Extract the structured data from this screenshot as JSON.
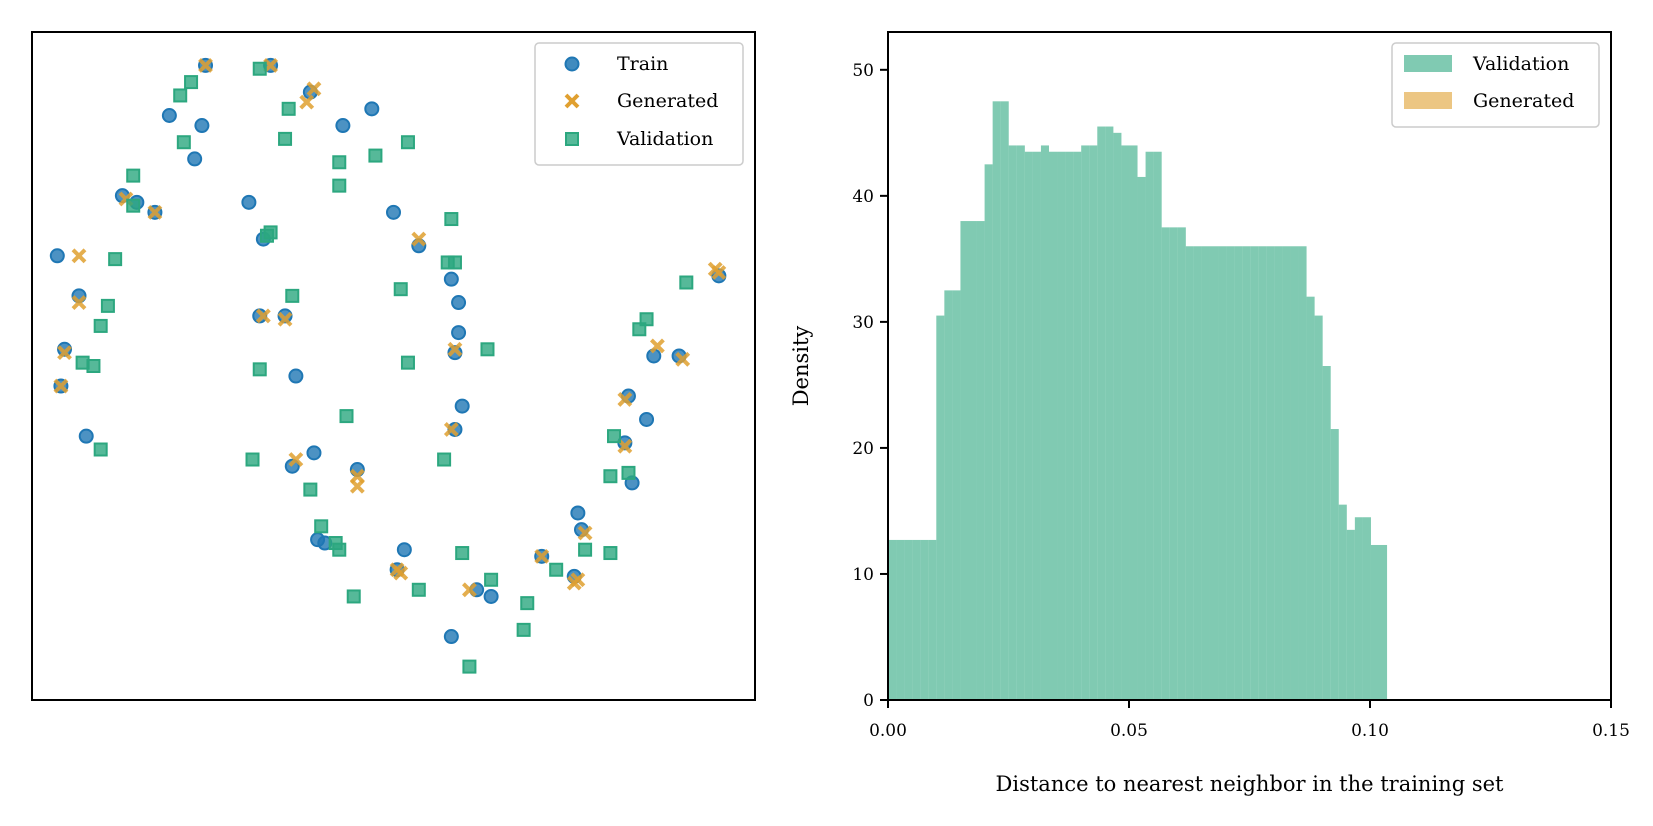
{
  "chart_data": [
    {
      "type": "scatter",
      "title": "",
      "xlabel": "",
      "ylabel": "",
      "xticks": false,
      "yticks": false,
      "xlim": [
        0,
        100
      ],
      "ylim": [
        0,
        100
      ],
      "legend": {
        "position": "top-right",
        "entries": [
          "Train",
          "Generated",
          "Validation"
        ]
      },
      "colors": {
        "Train": "#1f77b4",
        "Generated": "#e0a030",
        "Validation": "#2ca77f"
      },
      "series": [
        {
          "name": "Train",
          "marker": "circle",
          "points": [
            [
              24,
              95
            ],
            [
              33,
              95
            ],
            [
              38.5,
              91
            ],
            [
              43,
              86
            ],
            [
              47,
              88.5
            ],
            [
              23.5,
              86
            ],
            [
              19,
              87.5
            ],
            [
              22.5,
              81
            ],
            [
              14.5,
              74.5
            ],
            [
              12.5,
              75.5
            ],
            [
              17,
              73
            ],
            [
              30,
              74.5
            ],
            [
              32,
              69
            ],
            [
              50,
              73
            ],
            [
              53.5,
              68
            ],
            [
              3.5,
              66.5
            ],
            [
              6.5,
              60.5
            ],
            [
              31.5,
              57.5
            ],
            [
              35,
              57.5
            ],
            [
              58,
              63
            ],
            [
              59,
              59.5
            ],
            [
              4.5,
              52.5
            ],
            [
              59,
              55
            ],
            [
              58.5,
              52
            ],
            [
              36.5,
              48.5
            ],
            [
              4,
              47
            ],
            [
              59.5,
              44
            ],
            [
              58.5,
              40.5
            ],
            [
              7.5,
              39.5
            ],
            [
              82.5,
              45.5
            ],
            [
              85,
              42
            ],
            [
              82,
              38.5
            ],
            [
              39,
              37
            ],
            [
              36,
              35
            ],
            [
              45,
              34.5
            ],
            [
              83,
              32.5
            ],
            [
              75.5,
              28
            ],
            [
              76,
              25.5
            ],
            [
              39.5,
              24
            ],
            [
              40.5,
              23.5
            ],
            [
              70.5,
              21.5
            ],
            [
              51.5,
              22.5
            ],
            [
              50.5,
              19.5
            ],
            [
              61.5,
              16.5
            ],
            [
              63.5,
              15.5
            ],
            [
              75,
              18.5
            ],
            [
              58,
              9.5
            ],
            [
              86,
              51.5
            ],
            [
              89.5,
              51.5
            ],
            [
              95,
              63.5
            ]
          ]
        },
        {
          "name": "Generated",
          "marker": "x",
          "points": [
            [
              24,
              95
            ],
            [
              33,
              95
            ],
            [
              39,
              91.5
            ],
            [
              38,
              89.5
            ],
            [
              13,
              75
            ],
            [
              17,
              73
            ],
            [
              53.5,
              69
            ],
            [
              6.5,
              66.5
            ],
            [
              6.5,
              59.5
            ],
            [
              32,
              57.5
            ],
            [
              35,
              57
            ],
            [
              58.5,
              52.5
            ],
            [
              4.5,
              52
            ],
            [
              4,
              47
            ],
            [
              82,
              45
            ],
            [
              58,
              40.5
            ],
            [
              82,
              38
            ],
            [
              36.5,
              36
            ],
            [
              45,
              33.5
            ],
            [
              45,
              32
            ],
            [
              76.5,
              25
            ],
            [
              70.5,
              21.5
            ],
            [
              50.5,
              19.5
            ],
            [
              51,
              19
            ],
            [
              60.5,
              16.5
            ],
            [
              75.5,
              18
            ],
            [
              75,
              17.5
            ],
            [
              86.5,
              53
            ],
            [
              90,
              51
            ],
            [
              95,
              64
            ],
            [
              94.5,
              64.5
            ]
          ]
        },
        {
          "name": "Validation",
          "marker": "square",
          "points": [
            [
              31.5,
              94.5
            ],
            [
              22,
              92.5
            ],
            [
              20.5,
              90.5
            ],
            [
              35.5,
              88.5
            ],
            [
              21,
              83.5
            ],
            [
              35,
              84
            ],
            [
              42.5,
              80.5
            ],
            [
              47.5,
              81.5
            ],
            [
              52,
              83.5
            ],
            [
              42.5,
              77
            ],
            [
              14,
              78.5
            ],
            [
              14,
              74
            ],
            [
              58,
              72
            ],
            [
              33,
              70
            ],
            [
              32.5,
              69.5
            ],
            [
              11.5,
              66
            ],
            [
              57.5,
              65.5
            ],
            [
              58.5,
              65.5
            ],
            [
              51,
              61.5
            ],
            [
              36,
              60.5
            ],
            [
              10.5,
              59
            ],
            [
              9.5,
              56
            ],
            [
              63,
              52.5
            ],
            [
              52,
              50.5
            ],
            [
              31.5,
              49.5
            ],
            [
              7,
              50.5
            ],
            [
              8.5,
              50
            ],
            [
              43.5,
              42.5
            ],
            [
              9.5,
              37.5
            ],
            [
              30.5,
              36
            ],
            [
              57,
              36
            ],
            [
              38.5,
              31.5
            ],
            [
              80,
              33.5
            ],
            [
              82.5,
              34
            ],
            [
              40,
              26
            ],
            [
              42,
              23.5
            ],
            [
              42.5,
              22.5
            ],
            [
              44.5,
              15.5
            ],
            [
              53.5,
              16.5
            ],
            [
              59.5,
              22
            ],
            [
              63.5,
              18
            ],
            [
              68.5,
              14.5
            ],
            [
              68,
              10.5
            ],
            [
              60.5,
              5
            ],
            [
              72.5,
              19.5
            ],
            [
              76.5,
              22.5
            ],
            [
              80,
              22
            ],
            [
              80.5,
              39.5
            ],
            [
              85,
              57
            ],
            [
              84,
              55.5
            ],
            [
              90.5,
              62.5
            ]
          ]
        }
      ]
    },
    {
      "type": "histogram",
      "title": "",
      "xlabel": "Distance to nearest neighbor in the training set",
      "ylabel": "Density",
      "xlim": [
        0,
        0.15
      ],
      "ylim": [
        0,
        53
      ],
      "xticks": [
        0.0,
        0.05,
        0.1,
        0.15
      ],
      "xtick_labels": [
        "0.00",
        "0.05",
        "0.10",
        "0.15"
      ],
      "yticks": [
        0,
        10,
        20,
        30,
        40,
        50
      ],
      "ytick_labels": [
        "0",
        "10",
        "20",
        "30",
        "40",
        "50"
      ],
      "legend": {
        "position": "top-right",
        "entries": [
          "Validation",
          "Generated"
        ]
      },
      "colors": {
        "Validation": "#2ca77f",
        "Generated": "#e0a030"
      },
      "series": [
        {
          "name": "Validation",
          "bin_start": 0.0,
          "bin_width": 0.00167,
          "values": [
            12.7,
            12.7,
            12.7,
            12.7,
            12.7,
            12.7,
            30.5,
            32.5,
            32.5,
            38.0,
            38.0,
            38.0,
            42.5,
            47.5,
            47.5,
            44.0,
            44.0,
            43.5,
            43.5,
            44.0,
            43.5,
            43.5,
            43.5,
            43.5,
            44.0,
            44.0,
            45.5,
            45.5,
            45.0,
            44.0,
            44.0,
            41.5,
            43.5,
            43.5,
            37.5,
            37.5,
            37.5,
            36.0,
            36.0,
            36.0,
            36.0,
            36.0,
            36.0,
            36.0,
            36.0,
            36.0,
            36.0,
            36.0,
            36.0,
            36.0,
            36.0,
            36.0,
            32.0,
            30.5,
            26.5,
            21.5,
            15.5,
            13.5,
            14.5,
            14.5,
            12.3,
            12.3
          ]
        }
      ]
    }
  ]
}
